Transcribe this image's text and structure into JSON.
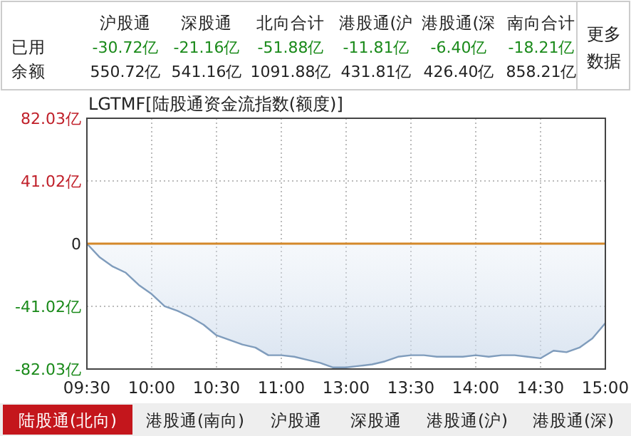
{
  "chart_data": {
    "type": "area",
    "title": "LGTMF[陆股通资金流指数(额度)]",
    "categories": [
      "09:30",
      null,
      null,
      null,
      null,
      "10:00",
      null,
      null,
      null,
      null,
      "10:30",
      null,
      null,
      null,
      null,
      "11:00",
      null,
      null,
      null,
      null,
      "13:00",
      null,
      null,
      null,
      null,
      "13:30",
      null,
      null,
      null,
      null,
      "14:00",
      null,
      null,
      null,
      null,
      "14:30",
      null,
      null,
      null,
      null,
      "15:00"
    ],
    "series": [
      {
        "color": "#7f9cbc",
        "values": [
          0,
          -9,
          -15,
          -19,
          -27,
          -33,
          -41,
          -44,
          -48,
          -53,
          -60,
          -63,
          -66,
          -68,
          -73,
          -73,
          -74,
          -76,
          -78,
          -81,
          -81,
          -80,
          -79,
          -77,
          -74,
          -73,
          -73,
          -74,
          -74,
          -74,
          -73,
          -74,
          -73,
          -73,
          -74,
          -75,
          -70,
          -71,
          -68,
          -62,
          -52
        ]
      }
    ],
    "ylim": [
      -82.03,
      82.03
    ],
    "yticks": [
      {
        "value": 82.03,
        "label": "82.03亿"
      },
      {
        "value": 41.02,
        "label": "41.02亿"
      },
      0,
      {
        "value": -41.02,
        "label": "-41.02亿"
      },
      {
        "value": -82.03,
        "label": "-82.03亿"
      }
    ],
    "ref_lines": [
      {
        "axis": "y",
        "value": 0,
        "color": "#d4882a"
      }
    ],
    "grid": true,
    "annotations": [
      "沪股通",
      "深股通",
      "北向合计",
      "港股通(沪",
      "港股通(深",
      "南向合计",
      "已用",
      "-30.72亿",
      "-21.16亿",
      "-51.88亿",
      "-11.81亿",
      "-6.40亿",
      "-18.21亿",
      "余额",
      "550.72亿",
      "541.16亿",
      "1091.88亿",
      "431.81亿",
      "426.40亿",
      "858.21亿",
      "更多数据",
      "陆股通(北向)",
      "港股通(南向)",
      "沪股通",
      "深股通",
      "港股通(沪)",
      "港股通(深)"
    ]
  }
}
